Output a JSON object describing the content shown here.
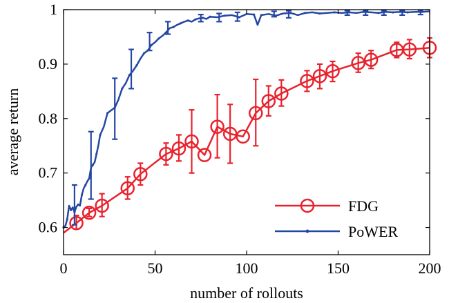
{
  "chart_data": {
    "type": "line",
    "xlabel": "number of rollouts",
    "ylabel": "average return",
    "xlim": [
      0,
      200
    ],
    "ylim": [
      0.55,
      1.0
    ],
    "x_ticks": [
      "0",
      "50",
      "100",
      "150",
      "200"
    ],
    "y_ticks": [
      "0.6",
      "0.7",
      "0.8",
      "0.9",
      "1"
    ],
    "legend_position": "bottom-right",
    "series": [
      {
        "name": "FDG",
        "color": "#e8222d",
        "marker": "circle",
        "x": [
          0,
          7,
          14,
          21,
          35,
          42,
          56,
          63,
          70,
          77,
          84,
          91,
          98,
          105,
          112,
          119,
          133,
          140,
          147,
          161,
          168,
          182,
          189,
          200
        ],
        "y": [
          0.59,
          0.608,
          0.627,
          0.64,
          0.672,
          0.698,
          0.735,
          0.745,
          0.758,
          0.733,
          0.785,
          0.772,
          0.767,
          0.81,
          0.832,
          0.846,
          0.869,
          0.878,
          0.887,
          0.902,
          0.908,
          0.926,
          0.927,
          0.93
        ],
        "error_x": [
          7,
          14,
          21,
          35,
          42,
          56,
          63,
          70,
          84,
          91,
          105,
          112,
          119,
          133,
          140,
          147,
          161,
          168,
          182,
          189,
          200
        ],
        "error_low": [
          0.597,
          0.62,
          0.62,
          0.652,
          0.678,
          0.715,
          0.722,
          0.7,
          0.728,
          0.718,
          0.75,
          0.805,
          0.823,
          0.85,
          0.855,
          0.868,
          0.885,
          0.892,
          0.912,
          0.91,
          0.912
        ],
        "error_high": [
          0.622,
          0.635,
          0.662,
          0.693,
          0.718,
          0.755,
          0.77,
          0.816,
          0.844,
          0.826,
          0.872,
          0.86,
          0.871,
          0.888,
          0.9,
          0.905,
          0.92,
          0.925,
          0.94,
          0.945,
          0.948
        ]
      },
      {
        "name": "PoWER",
        "color": "#2547a4",
        "marker": "dot",
        "x": [
          0,
          1,
          2,
          3,
          4,
          5,
          6,
          7,
          8,
          9,
          10,
          11,
          12,
          13,
          14,
          15,
          16,
          17,
          18,
          19,
          20,
          22,
          24,
          26,
          28,
          30,
          32,
          34,
          36,
          38,
          40,
          42,
          44,
          46,
          48,
          50,
          52,
          54,
          56,
          58,
          60,
          62,
          64,
          66,
          68,
          70,
          72,
          74,
          76,
          78,
          80,
          84,
          88,
          92,
          96,
          100,
          104,
          106,
          108,
          112,
          116,
          120,
          124,
          128,
          132,
          136,
          140,
          144,
          148,
          152,
          156,
          160,
          164,
          168,
          172,
          176,
          180,
          184,
          188,
          192,
          196,
          200
        ],
        "y": [
          0.6,
          0.603,
          0.615,
          0.64,
          0.632,
          0.637,
          0.628,
          0.638,
          0.642,
          0.64,
          0.66,
          0.672,
          0.678,
          0.685,
          0.69,
          0.71,
          0.715,
          0.72,
          0.735,
          0.75,
          0.77,
          0.785,
          0.81,
          0.815,
          0.82,
          0.835,
          0.855,
          0.865,
          0.88,
          0.888,
          0.898,
          0.91,
          0.92,
          0.925,
          0.935,
          0.94,
          0.947,
          0.952,
          0.958,
          0.966,
          0.968,
          0.972,
          0.975,
          0.978,
          0.98,
          0.978,
          0.982,
          0.984,
          0.985,
          0.983,
          0.987,
          0.986,
          0.989,
          0.99,
          0.986,
          0.992,
          0.991,
          0.972,
          0.99,
          0.992,
          0.989,
          0.993,
          0.994,
          0.99,
          0.994,
          0.995,
          0.993,
          0.994,
          0.995,
          0.994,
          0.995,
          0.994,
          0.996,
          0.995,
          0.994,
          0.996,
          0.995,
          0.996,
          0.995,
          0.996,
          0.996,
          0.997
        ],
        "error_x": [
          6,
          15,
          28,
          37,
          47,
          57,
          75,
          85,
          95,
          115,
          123,
          155,
          165,
          175,
          185,
          195
        ],
        "error_low": [
          0.605,
          0.652,
          0.762,
          0.855,
          0.925,
          0.955,
          0.978,
          0.978,
          0.979,
          0.987,
          0.985,
          0.99,
          0.99,
          0.99,
          0.99,
          0.991
        ],
        "error_high": [
          0.678,
          0.776,
          0.874,
          0.927,
          0.958,
          0.978,
          0.991,
          0.993,
          0.995,
          0.997,
          0.998,
          0.998,
          0.998,
          0.998,
          0.998,
          0.999
        ]
      }
    ]
  }
}
